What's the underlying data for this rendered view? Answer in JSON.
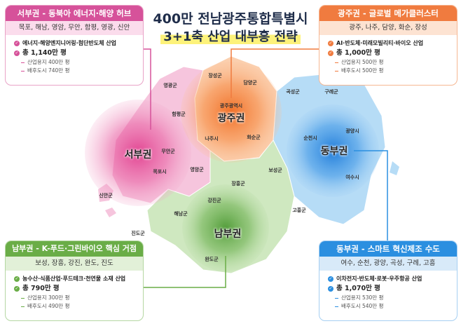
{
  "title": {
    "line1": "400만 전남광주통합특별시",
    "line2": "3+1축 산업 대부흥 전략"
  },
  "colors": {
    "west": "#d6529a",
    "gwangju": "#f07b3f",
    "south": "#6aad47",
    "east": "#2b8fe0"
  },
  "regions": {
    "west": {
      "header": "서부권 - 동북아 에너지·해양 허브",
      "areas": "목포, 해남, 영암, 무안, 함평, 영광, 신안",
      "industry": "에너지·해양엔지니어링·첨단반도체 산업",
      "total": "총 1,140만 평",
      "land": "산업용지 400만 평",
      "city": "배후도시 740만 평"
    },
    "gwangju": {
      "header": "광주권 - 글로벌 메가클러스터",
      "areas": "광주, 나주, 담양, 화순, 장성",
      "industry": "AI·반도체·미래모빌리티·바이오 산업",
      "total": "총 1,000만 평",
      "land": "산업용지 500만 평",
      "city": "배후도시 500만 평"
    },
    "south": {
      "header": "남부권 - K-푸드·그린바이오 핵심 거점",
      "areas": "보성, 장흥, 강진, 완도, 진도",
      "industry": "농수산·식품산업·푸드테크·천연물 소재 산업",
      "total": "총 790만 평",
      "land": "산업용지 300만 평",
      "city": "배후도시 490만 평"
    },
    "east": {
      "header": "동부권 - 스마트 혁신제조 수도",
      "areas": "여수, 순천, 광양, 곡성, 구례, 고흥",
      "industry": "이차전지·반도체·로봇·우주항공 산업",
      "total": "총 1,070만 평",
      "land": "산업용지 530만 평",
      "city": "배후도시 540만 평"
    }
  },
  "map": {
    "zones": {
      "west": "서부권",
      "gwangju": "광주권",
      "east": "동부권",
      "south": "남부권"
    },
    "labels": [
      "장성군",
      "담양군",
      "영광군",
      "광주광역시",
      "함평군",
      "나주시",
      "화순군",
      "곡성군",
      "구례군",
      "광양시",
      "순천시",
      "여수시",
      "보성군",
      "고흥군",
      "장흥군",
      "강진군",
      "완도군",
      "해남군",
      "진도군",
      "영암군",
      "목포시",
      "무안군",
      "신안군"
    ]
  }
}
